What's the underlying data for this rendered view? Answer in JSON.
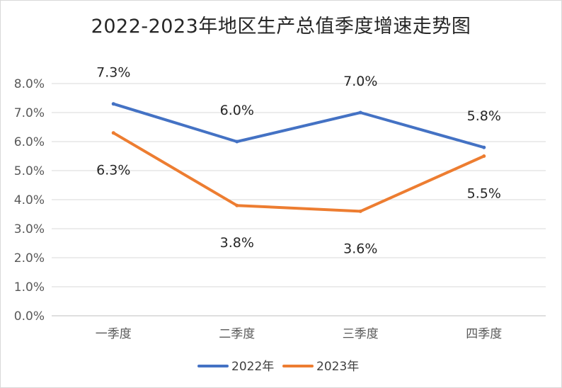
{
  "chart_data": {
    "type": "line",
    "title": "2022-2023年地区生产总值季度增速走势图",
    "categories": [
      "一季度",
      "二季度",
      "三季度",
      "四季度"
    ],
    "series": [
      {
        "name": "2022年",
        "color": "#4472C4",
        "values": [
          7.3,
          6.0,
          7.0,
          5.8
        ],
        "labels": [
          "7.3%",
          "6.0%",
          "7.0%",
          "5.8%"
        ],
        "label_position": [
          "above",
          "above",
          "above",
          "above"
        ]
      },
      {
        "name": "2023年",
        "color": "#ED7D31",
        "values": [
          6.3,
          3.8,
          3.6,
          5.5
        ],
        "labels": [
          "6.3%",
          "3.8%",
          "3.6%",
          "5.5%"
        ],
        "label_position": [
          "below",
          "below",
          "below",
          "below"
        ]
      }
    ],
    "ylim": [
      0,
      8
    ],
    "yticks": [
      0,
      1,
      2,
      3,
      4,
      5,
      6,
      7,
      8
    ],
    "ytick_labels": [
      "0.0%",
      "1.0%",
      "2.0%",
      "3.0%",
      "4.0%",
      "5.0%",
      "6.0%",
      "7.0%",
      "8.0%"
    ],
    "xlabel": "",
    "ylabel": "",
    "grid": true,
    "legend": "bottom"
  }
}
